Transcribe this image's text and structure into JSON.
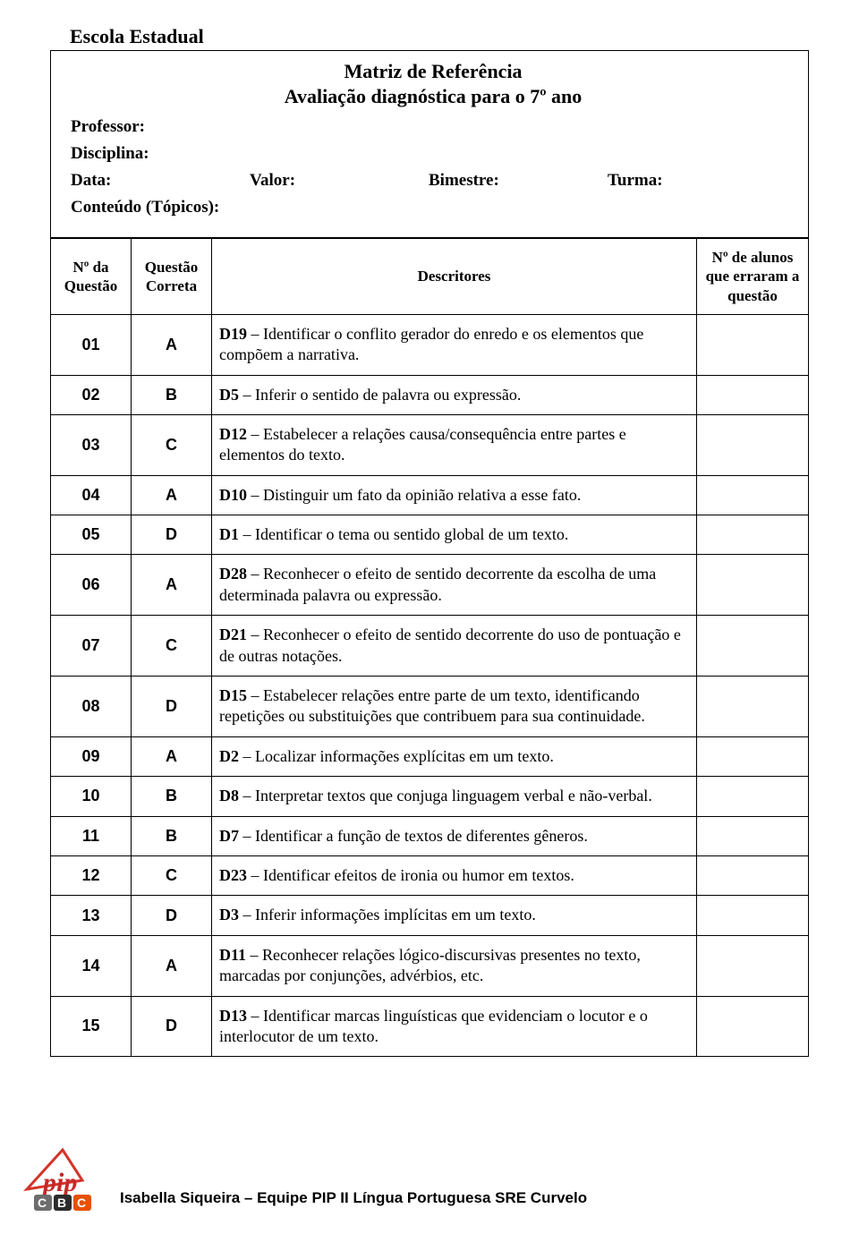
{
  "header": {
    "school_label": "Escola Estadual",
    "title": "Matriz de Referência",
    "subtitle": "Avaliação diagnóstica para o 7º ano",
    "professor_label": "Professor:",
    "disciplina_label": "Disciplina:",
    "data_label": "Data:",
    "valor_label": "Valor:",
    "bimestre_label": "Bimestre:",
    "turma_label": "Turma:",
    "conteudo_label": "Conteúdo (Tópicos):"
  },
  "columns": {
    "num": "Nº da Questão",
    "answer": "Questão Correta",
    "descriptor": "Descritores",
    "errors": "Nº de alunos que erraram a questão"
  },
  "rows": [
    {
      "num": "01",
      "ans": "A",
      "code": "D19",
      "text": " – Identificar o conflito gerador do enredo e os elementos que compõem a narrativa.",
      "err": ""
    },
    {
      "num": "02",
      "ans": "B",
      "code": "D5",
      "text": " – Inferir o sentido de palavra ou expressão.",
      "err": ""
    },
    {
      "num": "03",
      "ans": "C",
      "code": "D12",
      "text": " – Estabelecer a relações causa/consequência entre partes e elementos do texto.",
      "err": ""
    },
    {
      "num": "04",
      "ans": "A",
      "code": "D10",
      "text": " – Distinguir um fato da opinião relativa a esse fato.",
      "err": ""
    },
    {
      "num": "05",
      "ans": "D",
      "code": "D1",
      "text": " – Identificar o tema ou sentido global de um texto.",
      "err": ""
    },
    {
      "num": "06",
      "ans": "A",
      "code": "D28",
      "text": " – Reconhecer o efeito de sentido decorrente da escolha de uma determinada palavra ou expressão.",
      "err": ""
    },
    {
      "num": "07",
      "ans": "C",
      "code": "D21",
      "text": " – Reconhecer o efeito de sentido decorrente do uso de pontuação e de outras notações.",
      "err": ""
    },
    {
      "num": "08",
      "ans": "D",
      "code": "D15",
      "text": " – Estabelecer relações entre parte de um texto, identificando repetições ou substituições que contribuem para sua continuidade.",
      "err": ""
    },
    {
      "num": "09",
      "ans": "A",
      "code": "D2",
      "text": " – Localizar informações explícitas em um texto.",
      "err": ""
    },
    {
      "num": "10",
      "ans": "B",
      "code": "D8",
      "text": " – Interpretar textos que conjuga linguagem verbal e não-verbal.",
      "err": ""
    },
    {
      "num": "11",
      "ans": "B",
      "code": "D7",
      "text": " – Identificar a função de textos de diferentes gêneros.",
      "err": ""
    },
    {
      "num": "12",
      "ans": "C",
      "code": "D23",
      "text": " – Identificar efeitos de ironia ou humor em textos.",
      "err": ""
    },
    {
      "num": "13",
      "ans": "D",
      "code": "D3",
      "text": " – Inferir informações implícitas em um texto.",
      "err": ""
    },
    {
      "num": "14",
      "ans": "A",
      "code": "D11",
      "text": " – Reconhecer relações lógico-discursivas presentes no texto, marcadas por conjunções, advérbios, etc.",
      "err": ""
    },
    {
      "num": "15",
      "ans": "D",
      "code": "D13",
      "text": " – Identificar marcas linguísticas que evidenciam o locutor e o interlocutor de um texto.",
      "err": ""
    }
  ],
  "footer": {
    "text": "Isabella Siqueira – Equipe PIP II Língua Portuguesa SRE Curvelo",
    "logo": {
      "pip_text": "pip",
      "colors": {
        "triangle_stroke": "#d4342a",
        "script": "#c62828",
        "box1": "#6d6d6d",
        "box2": "#2b2b2b",
        "box3": "#e65100",
        "text": "#ffffff",
        "cbc_text": "CBC"
      }
    }
  },
  "style": {
    "page_bg": "#ffffff",
    "text_color": "#000000",
    "border_color": "#000000",
    "serif_font": "Times New Roman",
    "sans_font": "Arial"
  }
}
